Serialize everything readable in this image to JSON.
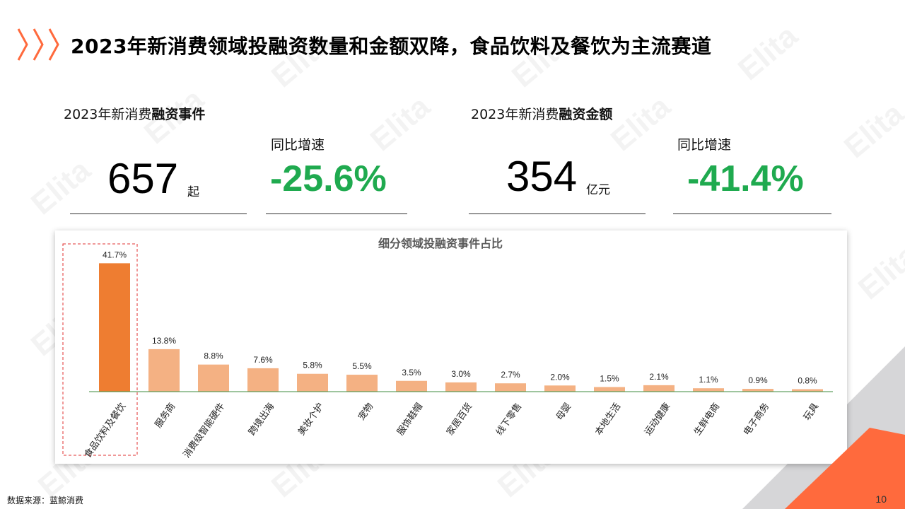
{
  "title": "2023年新消费领域投融资数量和金额双降，食品饮料及餐饮为主流赛道",
  "watermark": "Elita",
  "left_kpi": {
    "label_prefix": "2023年新消费",
    "label_bold": "融资事件",
    "value": "657",
    "unit": "起",
    "growth_label": "同比增速",
    "growth_value": "-25.6%"
  },
  "right_kpi": {
    "label_prefix": "2023年新消费",
    "label_bold": "融资金额",
    "value": "354",
    "unit": "亿元",
    "growth_label": "同比增速",
    "growth_value": "-41.4%"
  },
  "colors": {
    "highlight_bar": "#ee7d31",
    "bar": "#f4b183",
    "growth": "#1faa4f",
    "axis": "#3d8b3d",
    "highlight_box": "#e03030",
    "accent": "#ff6a3d"
  },
  "chart_data": {
    "type": "bar",
    "title": "细分领域投融资事件占比",
    "categories": [
      "食品饮料及餐饮",
      "服务商",
      "消费级智能硬件",
      "跨境出海",
      "美妆个护",
      "宠物",
      "服饰鞋帽",
      "家居百货",
      "线下零售",
      "母婴",
      "本地生活",
      "运动健康",
      "生鲜电商",
      "电子商务",
      "玩具"
    ],
    "values": [
      41.7,
      13.8,
      8.8,
      7.6,
      5.8,
      5.5,
      3.5,
      3.0,
      2.7,
      2.0,
      1.5,
      2.1,
      1.1,
      0.9,
      0.8
    ],
    "labels": [
      "41.7%",
      "13.8%",
      "8.8%",
      "7.6%",
      "5.8%",
      "5.5%",
      "3.5%",
      "3.0%",
      "2.7%",
      "2.0%",
      "1.5%",
      "2.1%",
      "1.1%",
      "0.9%",
      "0.8%"
    ],
    "highlight_index": 0,
    "ylim": [
      0,
      45
    ],
    "xlabel": "",
    "ylabel": "",
    "grid": false
  },
  "footer": {
    "source": "数据来源：蓝鲸消费",
    "page": "10"
  }
}
